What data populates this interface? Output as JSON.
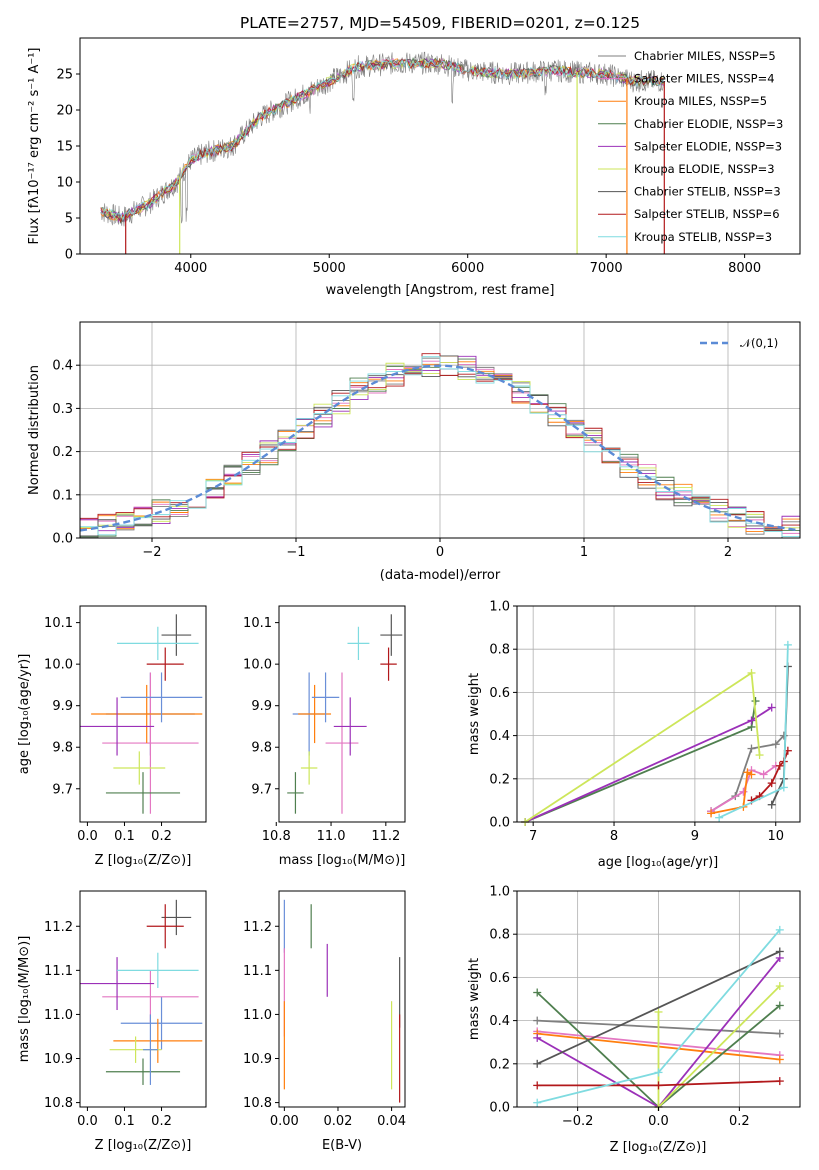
{
  "figure_title": "PLATE=2757, MJD=54509, FIBERID=0201, z=0.125",
  "colors": {
    "chabrier_miles": "#7f7f7f",
    "salpeter_miles": "#e377c2",
    "kroupa_miles": "#ff7f0e",
    "chabrier_elodie": "#4f7f4f",
    "salpeter_elodie": "#9b30b8",
    "kroupa_elodie": "#cde65a",
    "chabrier_stelib": "#555555",
    "salpeter_stelib": "#b2181b",
    "kroupa_stelib": "#7fdbe0",
    "data": "#808080",
    "model_blue": "#6a8fd8",
    "normal_curve": "#5b8bd6"
  },
  "chart_data": [
    {
      "type": "line",
      "title": "PLATE=2757, MJD=54509, FIBERID=0201, z=0.125",
      "xlabel": "wavelength [Angstrom, rest frame]",
      "ylabel": "Flux [fλ10⁻¹⁷ erg cm⁻² s⁻¹ A⁻¹]",
      "xlim": [
        3200,
        8400
      ],
      "ylim": [
        0,
        30
      ],
      "xticks": [
        "4000",
        "5000",
        "6000",
        "7000",
        "8000"
      ],
      "yticks": [
        "0",
        "5",
        "10",
        "15",
        "20",
        "25"
      ],
      "legend_position": "top-right",
      "series": [
        {
          "name": "Chabrier MILES, NSSP=5"
        },
        {
          "name": "Salpeter MILES, NSSP=4"
        },
        {
          "name": "Kroupa MILES, NSSP=5"
        },
        {
          "name": "Chabrier ELODIE, NSSP=3"
        },
        {
          "name": "Salpeter ELODIE, NSSP=3"
        },
        {
          "name": "Kroupa ELODIE, NSSP=3"
        },
        {
          "name": "Chabrier STELIB, NSSP=3"
        },
        {
          "name": "Salpeter STELIB, NSSP=6"
        },
        {
          "name": "Kroupa STELIB, NSSP=3"
        }
      ],
      "continuum": {
        "x": [
          3350,
          3500,
          3700,
          3900,
          4000,
          4100,
          4300,
          4500,
          4800,
          5000,
          5200,
          5500,
          5800,
          6000,
          6300,
          6600,
          7000,
          7200,
          7400
        ],
        "y": [
          6,
          5,
          7,
          10,
          13,
          14,
          15,
          19,
          22,
          24,
          26,
          26.5,
          26.5,
          25.5,
          25,
          25.5,
          25,
          24,
          24
        ]
      }
    },
    {
      "type": "line",
      "xlabel": "(data-model)/error",
      "ylabel": "Normed distribution",
      "xlim": [
        -2.5,
        2.5
      ],
      "ylim": [
        0,
        0.5
      ],
      "xticks": [
        "−2",
        "−1",
        "0",
        "1",
        "2"
      ],
      "yticks": [
        "0.0",
        "0.1",
        "0.2",
        "0.3",
        "0.4"
      ],
      "grid": true,
      "legend_position": "top-right",
      "legend": "𝒩(0,1)",
      "histogram_bins": 40
    },
    {
      "type": "scatter",
      "xlabel": "Z [log₁₀(Z/Z⊙)]",
      "ylabel": "age  [log₁₀(age/yr)]",
      "xlim": [
        -0.02,
        0.32
      ],
      "ylim": [
        9.62,
        10.14
      ],
      "xticks": [
        "0.0",
        "0.1",
        "0.2"
      ],
      "yticks": [
        "9.7",
        "9.8",
        "9.9",
        "10.0",
        "10.1"
      ],
      "points": [
        {
          "x": 0.17,
          "y": 9.88,
          "dx": 0.12,
          "dy": 0.1
        },
        {
          "x": 0.17,
          "y": 9.81,
          "dx": 0.13,
          "dy": 0.17
        },
        {
          "x": 0.16,
          "y": 9.88,
          "dx": 0.15,
          "dy": 0.07
        },
        {
          "x": 0.15,
          "y": 9.69,
          "dx": 0.1,
          "dy": 0.05
        },
        {
          "x": 0.08,
          "y": 9.85,
          "dx": 0.1,
          "dy": 0.07
        },
        {
          "x": 0.14,
          "y": 9.75,
          "dx": 0.07,
          "dy": 0.04
        },
        {
          "x": 0.24,
          "y": 10.07,
          "dx": 0.04,
          "dy": 0.05
        },
        {
          "x": 0.21,
          "y": 10.0,
          "dx": 0.05,
          "dy": 0.04
        },
        {
          "x": 0.19,
          "y": 10.05,
          "dx": 0.11,
          "dy": 0.04
        },
        {
          "x": 0.2,
          "y": 9.92,
          "dx": 0.11,
          "dy": 0.06
        }
      ]
    },
    {
      "type": "scatter",
      "xlabel": "mass [log₁₀(M/M⊙)]",
      "xlim": [
        10.81,
        11.27
      ],
      "ylim": [
        9.62,
        10.14
      ],
      "xticks": [
        "10.8",
        "11.0",
        "11.2"
      ],
      "yticks": [
        "9.7",
        "9.8",
        "9.9",
        "10.0",
        "10.1"
      ],
      "points": [
        {
          "x": 10.92,
          "y": 9.88,
          "dx": 0.06,
          "dy": 0.1
        },
        {
          "x": 11.04,
          "y": 9.81,
          "dx": 0.06,
          "dy": 0.17
        },
        {
          "x": 10.94,
          "y": 9.88,
          "dx": 0.06,
          "dy": 0.07
        },
        {
          "x": 10.87,
          "y": 9.69,
          "dx": 0.03,
          "dy": 0.05
        },
        {
          "x": 11.07,
          "y": 9.85,
          "dx": 0.06,
          "dy": 0.07
        },
        {
          "x": 10.92,
          "y": 9.75,
          "dx": 0.03,
          "dy": 0.04
        },
        {
          "x": 11.22,
          "y": 10.07,
          "dx": 0.04,
          "dy": 0.05
        },
        {
          "x": 11.21,
          "y": 10.0,
          "dx": 0.03,
          "dy": 0.04
        },
        {
          "x": 11.1,
          "y": 10.05,
          "dx": 0.04,
          "dy": 0.04
        },
        {
          "x": 10.98,
          "y": 9.92,
          "dx": 0.05,
          "dy": 0.06
        }
      ]
    },
    {
      "type": "line",
      "xlabel": "age  [log₁₀(age/yr)]",
      "ylabel": "mass weight",
      "xlim": [
        6.8,
        10.3
      ],
      "ylim": [
        0,
        1
      ],
      "xticks": [
        "7",
        "8",
        "9",
        "10"
      ],
      "yticks": [
        "0.0",
        "0.2",
        "0.4",
        "0.6",
        "0.8",
        "1.0"
      ],
      "grid": true,
      "series": [
        {
          "x": [
            9.2,
            9.5,
            9.7,
            10.0,
            10.1
          ],
          "y": [
            0.05,
            0.12,
            0.34,
            0.36,
            0.4
          ]
        },
        {
          "x": [
            9.2,
            9.6,
            9.7,
            9.85,
            10.0
          ],
          "y": [
            0.05,
            0.14,
            0.24,
            0.22,
            0.26
          ]
        },
        {
          "x": [
            9.2,
            9.6,
            9.65,
            9.7
          ],
          "y": [
            0.04,
            0.07,
            0.23,
            0.22
          ]
        },
        {
          "x": [
            6.9,
            9.7,
            9.75
          ],
          "y": [
            0.0,
            0.44,
            0.56
          ]
        },
        {
          "x": [
            6.9,
            9.7,
            9.95
          ],
          "y": [
            0.0,
            0.47,
            0.53
          ]
        },
        {
          "x": [
            6.9,
            9.7,
            9.8
          ],
          "y": [
            0.0,
            0.69,
            0.31
          ]
        },
        {
          "x": [
            9.95,
            10.1,
            10.15
          ],
          "y": [
            0.08,
            0.2,
            0.72
          ]
        },
        {
          "x": [
            9.7,
            9.8,
            9.95,
            10.05,
            10.1,
            10.15
          ],
          "y": [
            0.1,
            0.12,
            0.18,
            0.26,
            0.28,
            0.33
          ]
        },
        {
          "x": [
            9.3,
            10.1,
            10.15
          ],
          "y": [
            0.02,
            0.16,
            0.82
          ]
        }
      ]
    },
    {
      "type": "scatter",
      "xlabel": "Z [log₁₀(Z/Z⊙)]",
      "ylabel": "mass [log₁₀(M/M⊙)]",
      "xlim": [
        -0.02,
        0.32
      ],
      "ylim": [
        10.79,
        11.28
      ],
      "xticks": [
        "0.0",
        "0.1",
        "0.2"
      ],
      "yticks": [
        "10.8",
        "10.9",
        "11.0",
        "11.1",
        "11.2"
      ],
      "points": [
        {
          "x": 0.2,
          "y": 10.98,
          "dx": 0.11,
          "dy": 0.06
        },
        {
          "x": 0.17,
          "y": 11.04,
          "dx": 0.13,
          "dy": 0.06
        },
        {
          "x": 0.19,
          "y": 10.94,
          "dx": 0.12,
          "dy": 0.05
        },
        {
          "x": 0.15,
          "y": 10.87,
          "dx": 0.1,
          "dy": 0.03
        },
        {
          "x": 0.08,
          "y": 11.07,
          "dx": 0.1,
          "dy": 0.06
        },
        {
          "x": 0.13,
          "y": 10.92,
          "dx": 0.07,
          "dy": 0.03
        },
        {
          "x": 0.24,
          "y": 11.22,
          "dx": 0.04,
          "dy": 0.04
        },
        {
          "x": 0.21,
          "y": 11.2,
          "dx": 0.05,
          "dy": 0.05
        },
        {
          "x": 0.19,
          "y": 11.1,
          "dx": 0.11,
          "dy": 0.04
        },
        {
          "x": 0.17,
          "y": 10.92,
          "dx": 0.02,
          "dy": 0.08
        }
      ]
    },
    {
      "type": "scatter",
      "xlabel": "E(B-V)",
      "xlim": [
        -0.002,
        0.045
      ],
      "ylim": [
        10.79,
        11.28
      ],
      "xticks": [
        "0.00",
        "0.02",
        "0.04"
      ],
      "yticks": [
        "10.8",
        "10.9",
        "11.0",
        "11.1",
        "11.2"
      ],
      "points": [
        {
          "x": 0.0,
          "y": 11.2,
          "dx": 0,
          "dy": 0.06
        },
        {
          "x": 0.0,
          "y": 11.05,
          "dx": 0,
          "dy": 0.1
        },
        {
          "x": 0.0,
          "y": 10.93,
          "dx": 0,
          "dy": 0.1
        },
        {
          "x": 0.01,
          "y": 11.2,
          "dx": 0,
          "dy": 0.05
        },
        {
          "x": 0.016,
          "y": 11.1,
          "dx": 0,
          "dy": 0.06
        },
        {
          "x": 0.04,
          "y": 10.93,
          "dx": 0,
          "dy": 0.1
        },
        {
          "x": 0.043,
          "y": 11.05,
          "dx": 0,
          "dy": 0.08
        },
        {
          "x": 0.043,
          "y": 10.9,
          "dx": 0,
          "dy": 0.1
        }
      ]
    },
    {
      "type": "line",
      "xlabel": "Z [log₁₀(Z/Z⊙)]",
      "ylabel": "mass weight",
      "xlim": [
        -0.35,
        0.35
      ],
      "ylim": [
        0,
        1
      ],
      "xticks": [
        "−0.2",
        "0.0",
        "0.2"
      ],
      "yticks": [
        "0.0",
        "0.2",
        "0.4",
        "0.6",
        "0.8",
        "1.0"
      ],
      "grid": true,
      "series": [
        {
          "x": [
            -0.3,
            0.3
          ],
          "y": [
            0.4,
            0.34
          ]
        },
        {
          "x": [
            -0.3,
            0.3
          ],
          "y": [
            0.35,
            0.24
          ]
        },
        {
          "x": [
            -0.3,
            0.3
          ],
          "y": [
            0.34,
            0.22
          ]
        },
        {
          "x": [
            -0.3,
            0.0,
            0.3
          ],
          "y": [
            0.53,
            0.0,
            0.47
          ]
        },
        {
          "x": [
            -0.3,
            0.0,
            0.3
          ],
          "y": [
            0.32,
            0.0,
            0.69
          ]
        },
        {
          "x": [
            0.0,
            0.0,
            0.3
          ],
          "y": [
            0.44,
            0.0,
            0.56
          ]
        },
        {
          "x": [
            -0.3,
            0.3
          ],
          "y": [
            0.2,
            0.72
          ]
        },
        {
          "x": [
            -0.3,
            0.0,
            0.3
          ],
          "y": [
            0.1,
            0.1,
            0.12
          ]
        },
        {
          "x": [
            -0.3,
            0.0,
            0.3
          ],
          "y": [
            0.02,
            0.16,
            0.82
          ]
        }
      ]
    }
  ]
}
